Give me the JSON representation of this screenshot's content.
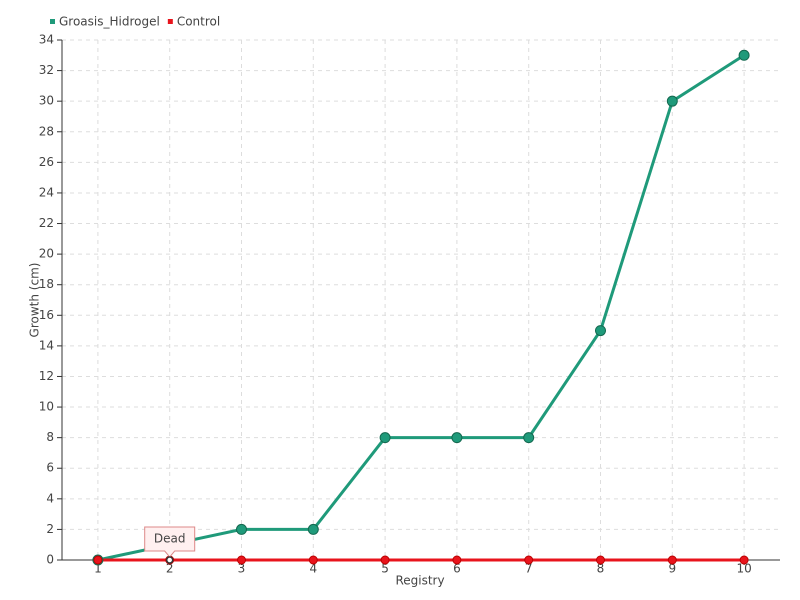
{
  "chart_data": {
    "type": "line",
    "x_label": "Registry",
    "y_label": "Growth (cm)",
    "categories": [
      "1",
      "2",
      "3",
      "4",
      "5",
      "6",
      "7",
      "8",
      "9",
      "10"
    ],
    "series": [
      {
        "name": "Groasis_Hidrogel",
        "color": "#1f9a7a",
        "values": [
          0,
          1,
          2,
          2,
          8,
          8,
          8,
          15,
          30,
          33
        ]
      },
      {
        "name": "Control",
        "color": "#e8141c",
        "values": [
          0,
          0,
          0,
          0,
          0,
          0,
          0,
          0,
          0,
          0
        ]
      }
    ],
    "ylim": [
      0,
      34
    ],
    "yticks": [
      0,
      2,
      4,
      6,
      8,
      10,
      12,
      14,
      16,
      18,
      20,
      22,
      24,
      26,
      28,
      30,
      32,
      34
    ],
    "grid": true,
    "legend": "top-left",
    "annotations": [
      {
        "text": "Dead",
        "x": "2",
        "y": 0
      }
    ]
  }
}
